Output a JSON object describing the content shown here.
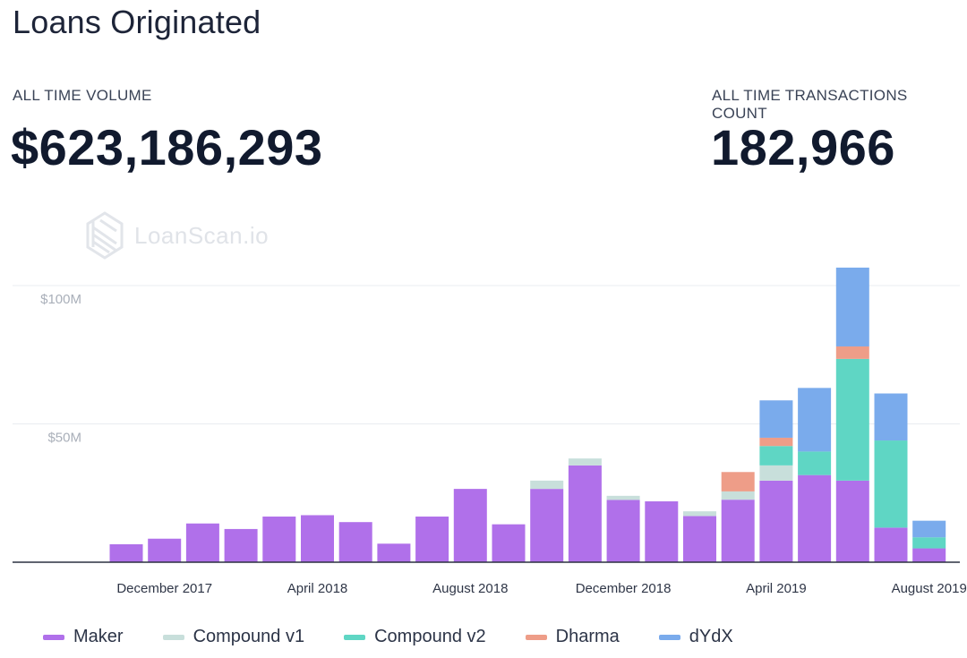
{
  "title": "Loans Originated",
  "kpis": {
    "volume_label": "ALL TIME VOLUME",
    "volume_value": "$623,186,293",
    "tx_label": "ALL TIME TRANSACTIONS COUNT",
    "tx_value": "182,966"
  },
  "watermark": "LoanScan.io",
  "colors": {
    "Maker": "#b070ea",
    "Compound v1": "#c8dfdb",
    "Compound v2": "#5fd6c4",
    "Dharma": "#ee9d88",
    "dYdX": "#7aabec",
    "grid": "#e9ecf0",
    "axis": "#2b3040"
  },
  "chart_data": {
    "type": "bar",
    "stacked": true,
    "categories": [
      "Nov 2017",
      "Dec 2017",
      "Jan 2018",
      "Feb 2018",
      "Mar 2018",
      "Apr 2018",
      "May 2018",
      "Jun 2018",
      "Jul 2018",
      "Aug 2018",
      "Sep 2018",
      "Oct 2018",
      "Nov 2018",
      "Dec 2018",
      "Jan 2019",
      "Feb 2019",
      "Mar 2019",
      "Apr 2019",
      "May 2019",
      "Jun 2019",
      "Jul 2019",
      "Aug 2019",
      "Sep 2019"
    ],
    "x_tick_labels": [
      "December 2017",
      "April 2018",
      "August 2018",
      "December 2018",
      "April 2019",
      "August 2019"
    ],
    "x_tick_indices": [
      1,
      5,
      9,
      13,
      17,
      21
    ],
    "y_ticks": [
      {
        "value": 50,
        "label": "$50M"
      },
      {
        "value": 100,
        "label": "$100M"
      }
    ],
    "ylim": [
      0,
      110
    ],
    "y_unit": "$M",
    "legend_position": "bottom",
    "series": [
      {
        "name": "Maker",
        "values": [
          6.5,
          8.5,
          14,
          12,
          16.5,
          17,
          14.5,
          6.7,
          16.5,
          26.5,
          13.7,
          26.5,
          35,
          22.5,
          22,
          16.7,
          22.6,
          29.5,
          31.5,
          29.5,
          12.5,
          5,
          0
        ]
      },
      {
        "name": "Compound v1",
        "values": [
          0,
          0,
          0,
          0,
          0,
          0,
          0,
          0,
          0,
          0,
          0,
          3,
          2.5,
          1.5,
          0,
          1.7,
          3,
          5.5,
          0,
          0,
          0,
          0,
          0
        ]
      },
      {
        "name": "Compound v2",
        "values": [
          0,
          0,
          0,
          0,
          0,
          0,
          0,
          0,
          0,
          0,
          0,
          0,
          0,
          0,
          0,
          0,
          0,
          7,
          8.5,
          44,
          31.5,
          4,
          0
        ]
      },
      {
        "name": "Dharma",
        "values": [
          0,
          0,
          0,
          0,
          0,
          0,
          0,
          0,
          0,
          0,
          0,
          0,
          0,
          0,
          0,
          0,
          7,
          3,
          0,
          4.5,
          0,
          0,
          0
        ]
      },
      {
        "name": "dYdX",
        "values": [
          0,
          0,
          0,
          0,
          0,
          0,
          0,
          0,
          0,
          0,
          0,
          0,
          0,
          0,
          0,
          0,
          0,
          13.5,
          23,
          28.5,
          17,
          6,
          0
        ]
      }
    ]
  }
}
